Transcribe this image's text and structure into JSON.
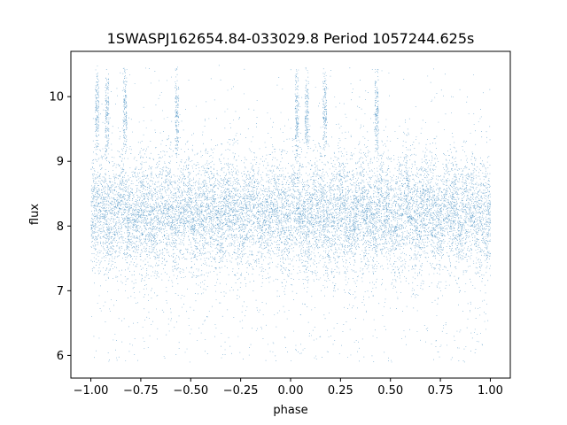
{
  "chart_data": {
    "type": "scatter",
    "title": "1SWASPJ162654.84-033029.8 Period 1057244.625s",
    "xlabel": "phase",
    "ylabel": "flux",
    "xlim": [
      -1.1,
      1.1
    ],
    "ylim": [
      5.65,
      10.7
    ],
    "xticks": [
      -1.0,
      -0.75,
      -0.5,
      -0.25,
      0.0,
      0.25,
      0.5,
      0.75,
      1.0
    ],
    "xtick_labels": [
      "−1.00",
      "−0.75",
      "−0.50",
      "−0.25",
      "0.00",
      "0.25",
      "0.50",
      "0.75",
      "1.00"
    ],
    "yticks": [
      6,
      7,
      8,
      9,
      10
    ],
    "ytick_labels": [
      "6",
      "7",
      "8",
      "9",
      "10"
    ],
    "grid": false,
    "legend": "none",
    "marker_color": "#1f77b4",
    "series": [
      {
        "x_range": [
          -1.0,
          1.0
        ],
        "band_center": 8.2,
        "band_spread": 0.45,
        "flux_min": 5.9,
        "flux_max": 10.5,
        "bright_streaks_phase": [
          -0.97,
          -0.92,
          -0.83,
          -0.57,
          0.03,
          0.08,
          0.17,
          0.43
        ],
        "bright_streak_flux": [
          9.6,
          10.5
        ]
      }
    ]
  }
}
